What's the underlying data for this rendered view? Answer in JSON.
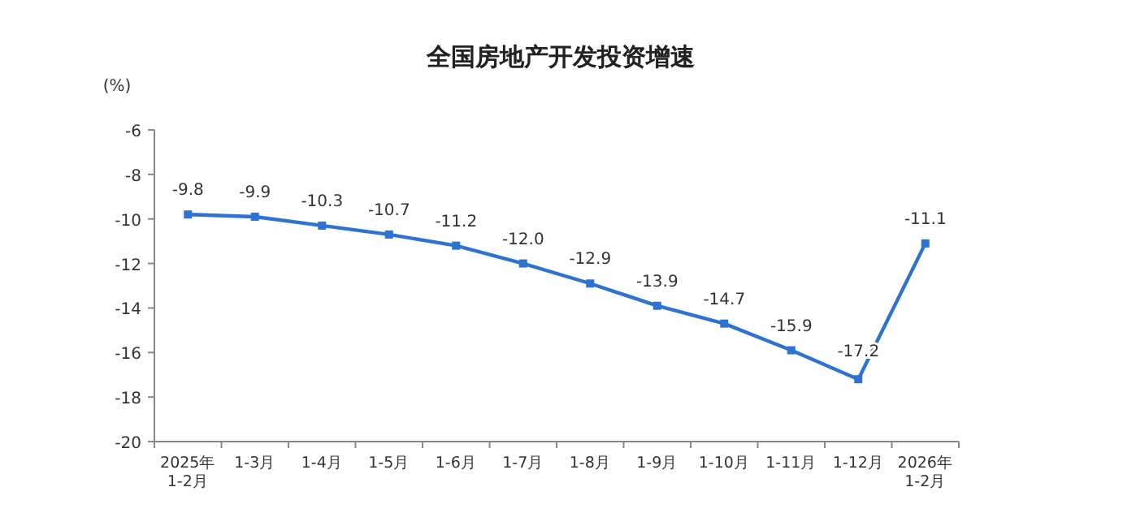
{
  "chart_data": {
    "type": "line",
    "title": "全国房地产开发投资增速",
    "ylabel": "(%)",
    "categories": [
      "2025年\n1-2月",
      "1-3月",
      "1-4月",
      "1-5月",
      "1-6月",
      "1-7月",
      "1-8月",
      "1-9月",
      "1-10月",
      "1-11月",
      "1-12月",
      "2026年\n1-2月"
    ],
    "series": [
      {
        "color": "#2e73d1",
        "values": [
          -9.8,
          -9.9,
          -10.3,
          -10.7,
          -11.2,
          -12.0,
          -12.9,
          -13.9,
          -14.7,
          -15.9,
          -17.2,
          -11.1
        ],
        "value_labels": [
          "-9.8",
          "-9.9",
          "-10.3",
          "-10.7",
          "-11.2",
          "-12.0",
          "-12.9",
          "-13.9",
          "-14.7",
          "-15.9",
          "-17.2",
          "-11.1"
        ]
      }
    ],
    "ylim": [
      -20,
      -6
    ],
    "yticks": [
      -20,
      -18,
      -16,
      -14,
      -12,
      -10,
      -8,
      -6
    ],
    "marker": "square",
    "grid": false
  }
}
